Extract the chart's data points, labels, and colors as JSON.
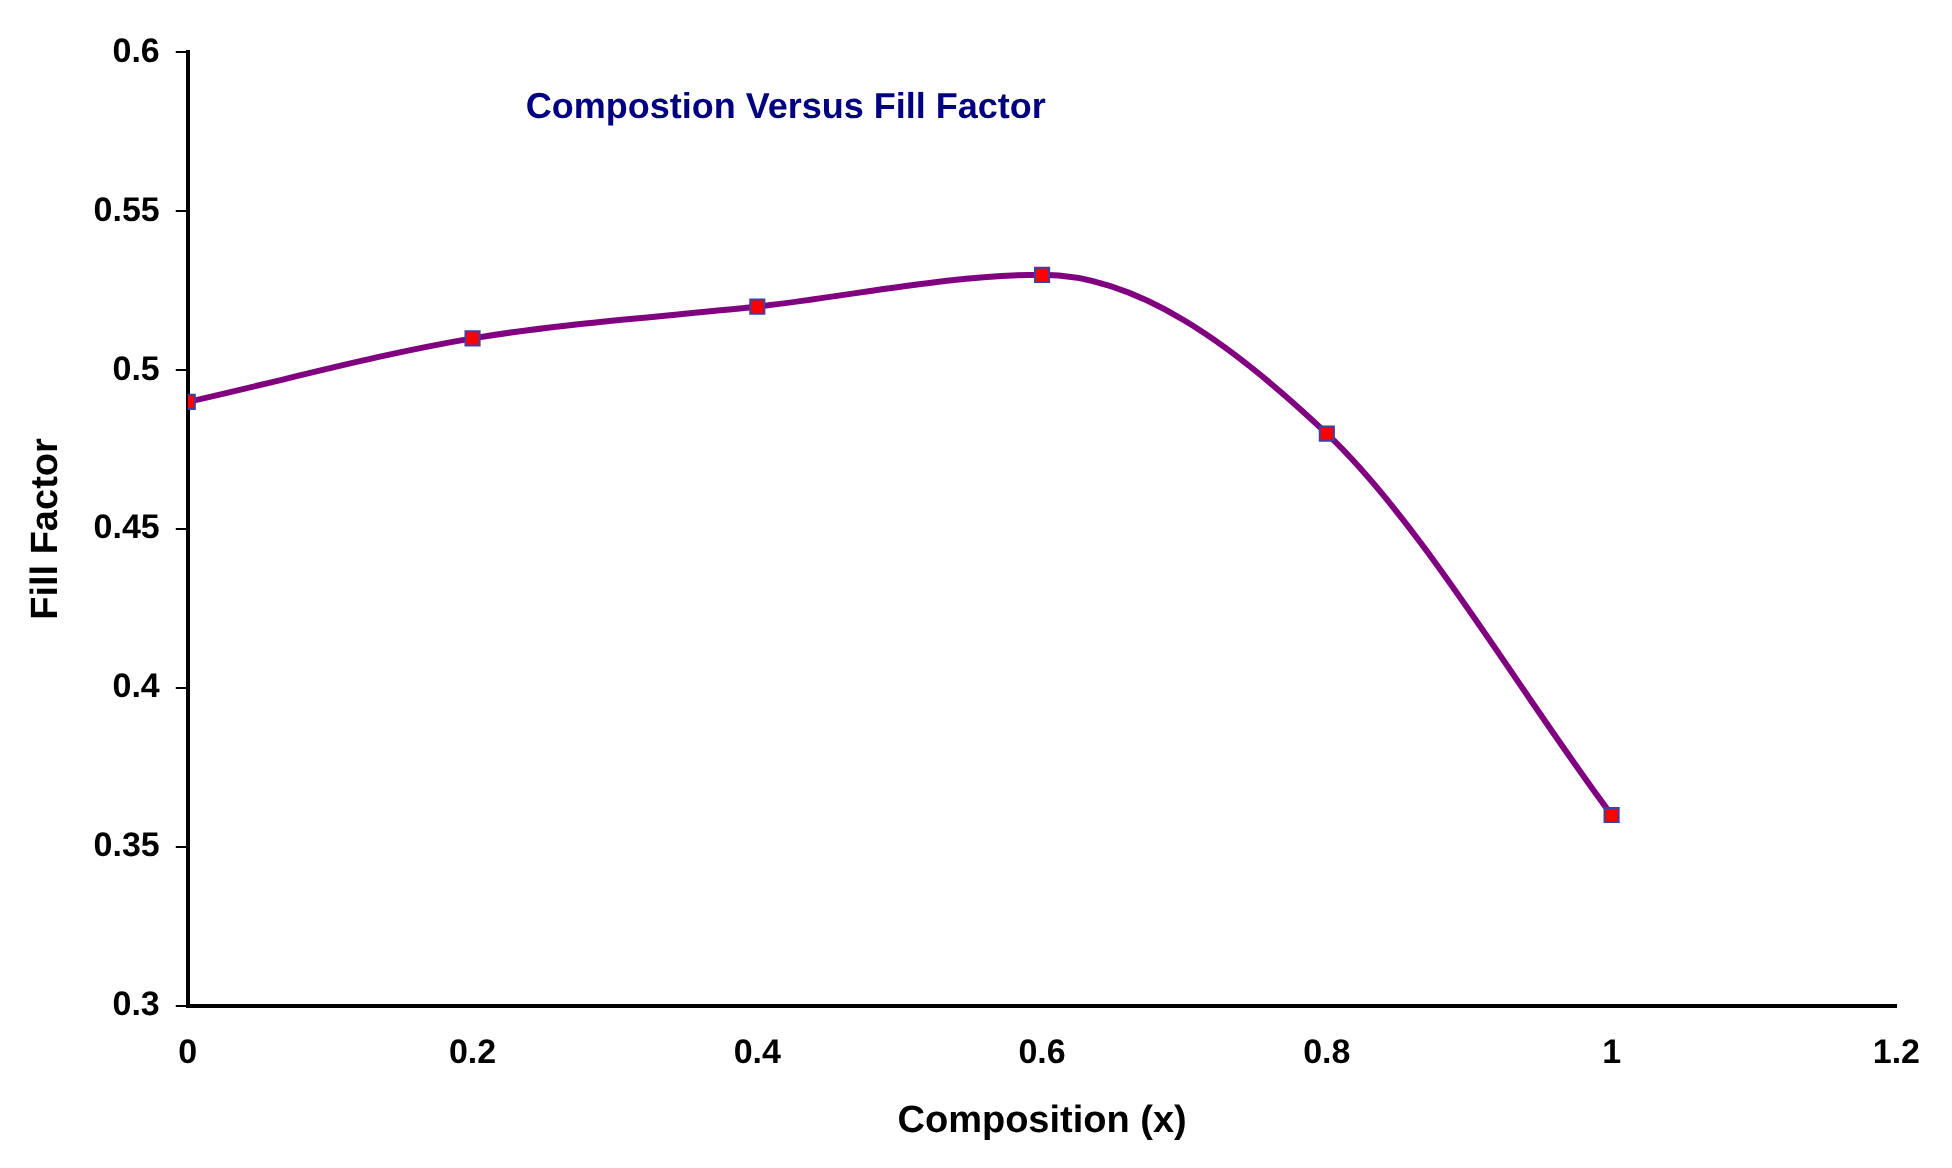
{
  "chart_data": {
    "type": "line",
    "title": "Compostion Versus Fill Factor",
    "xlabel": "Composition (x)",
    "ylabel": "Fill Factor",
    "x": [
      0,
      0.2,
      0.4,
      0.6,
      0.8,
      1
    ],
    "series": [
      {
        "color": "#800080",
        "values": [
          0.49,
          0.51,
          0.52,
          0.53,
          0.48,
          0.36
        ]
      }
    ],
    "xlim": [
      0,
      1.2
    ],
    "xticks": [
      0,
      0.2,
      0.4,
      0.6,
      0.8,
      1,
      1.2
    ],
    "ylim": [
      0.3,
      0.6
    ],
    "yticks": [
      0.3,
      0.35,
      0.4,
      0.45,
      0.5,
      0.55,
      0.6
    ],
    "grid": false,
    "legend": false,
    "marker": "square",
    "line_style": "solid"
  }
}
